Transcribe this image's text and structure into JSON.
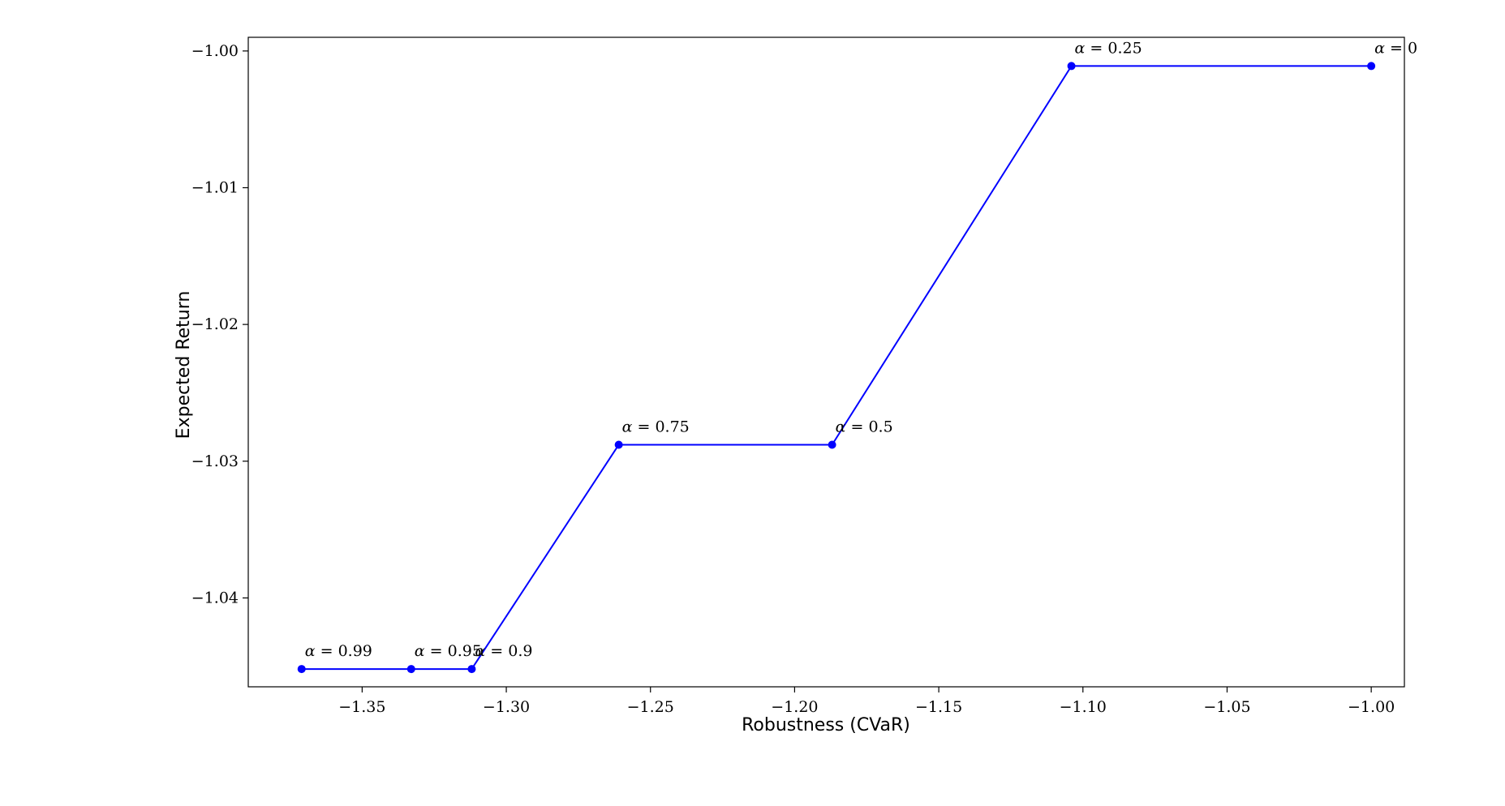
{
  "chart_data": {
    "type": "line",
    "title": "",
    "xlabel": "Robustness (CVaR)",
    "ylabel": "Expected Return",
    "xlim": [
      -1.3895,
      -0.9885
    ],
    "ylim": [
      -1.0465,
      -0.999
    ],
    "xticks": [
      -1.35,
      -1.3,
      -1.25,
      -1.2,
      -1.15,
      -1.1,
      -1.05,
      -1.0
    ],
    "xtick_labels": [
      "−1.35",
      "−1.30",
      "−1.25",
      "−1.20",
      "−1.15",
      "−1.10",
      "−1.05",
      "−1.00"
    ],
    "yticks": [
      -1.0,
      -1.01,
      -1.02,
      -1.03,
      -1.04
    ],
    "ytick_labels": [
      "−1.00",
      "−1.01",
      "−1.02",
      "−1.03",
      "−1.04"
    ],
    "grid": false,
    "series": [
      {
        "color": "#0000ff",
        "marker": "circle",
        "points": [
          {
            "x": -1.371,
            "y": -1.0452,
            "label_alpha": "α",
            "label_value": "0.99"
          },
          {
            "x": -1.333,
            "y": -1.0452,
            "label_alpha": "α",
            "label_value": "0.95"
          },
          {
            "x": -1.312,
            "y": -1.0452,
            "label_alpha": "α",
            "label_value": "0.9"
          },
          {
            "x": -1.261,
            "y": -1.0288,
            "label_alpha": "α",
            "label_value": "0.75"
          },
          {
            "x": -1.187,
            "y": -1.0288,
            "label_alpha": "α",
            "label_value": "0.5"
          },
          {
            "x": -1.104,
            "y": -1.0011,
            "label_alpha": "α",
            "label_value": "0.25"
          },
          {
            "x": -1.0,
            "y": -1.0011,
            "label_alpha": "α",
            "label_value": "0"
          }
        ]
      }
    ]
  }
}
